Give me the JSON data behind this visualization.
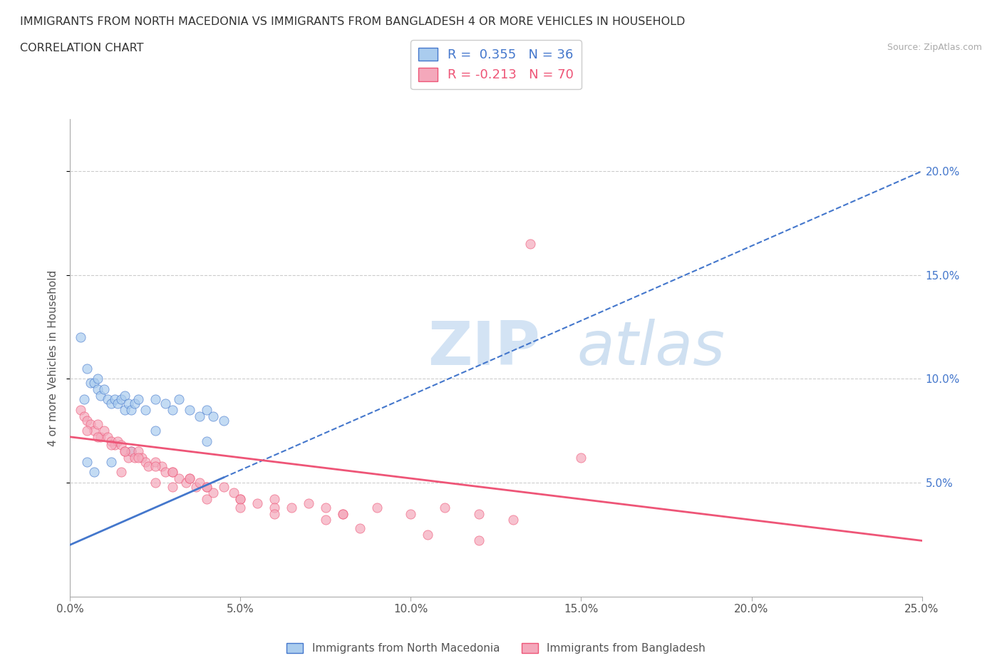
{
  "title_line1": "IMMIGRANTS FROM NORTH MACEDONIA VS IMMIGRANTS FROM BANGLADESH 4 OR MORE VEHICLES IN HOUSEHOLD",
  "title_line2": "CORRELATION CHART",
  "source_text": "Source: ZipAtlas.com",
  "ylabel": "4 or more Vehicles in Household",
  "legend_label1": "Immigrants from North Macedonia",
  "legend_label2": "Immigrants from Bangladesh",
  "R1": 0.355,
  "N1": 36,
  "R2": -0.213,
  "N2": 70,
  "xlim": [
    0.0,
    0.25
  ],
  "ylim": [
    -0.005,
    0.225
  ],
  "xticks": [
    0.0,
    0.05,
    0.1,
    0.15,
    0.2,
    0.25
  ],
  "yticks": [
    0.05,
    0.1,
    0.15,
    0.2
  ],
  "xtick_labels": [
    "0.0%",
    "5.0%",
    "10.0%",
    "15.0%",
    "20.0%",
    "25.0%"
  ],
  "ytick_labels": [
    "5.0%",
    "10.0%",
    "15.0%",
    "20.0%"
  ],
  "color1": "#aaccee",
  "color2": "#f4a8bb",
  "trendline1_color": "#4477cc",
  "trendline2_color": "#ee5577",
  "watermark_zip": "ZIP",
  "watermark_atlas": "atlas",
  "trendline1_intercept": 0.02,
  "trendline1_slope": 0.72,
  "trendline2_intercept": 0.072,
  "trendline2_slope": -0.2,
  "scatter1_x": [
    0.003,
    0.004,
    0.005,
    0.006,
    0.007,
    0.008,
    0.008,
    0.009,
    0.01,
    0.011,
    0.012,
    0.013,
    0.014,
    0.015,
    0.016,
    0.016,
    0.017,
    0.018,
    0.019,
    0.02,
    0.022,
    0.025,
    0.028,
    0.03,
    0.032,
    0.035,
    0.038,
    0.04,
    0.042,
    0.045,
    0.005,
    0.007,
    0.012,
    0.018,
    0.025,
    0.04
  ],
  "scatter1_y": [
    0.12,
    0.09,
    0.105,
    0.098,
    0.098,
    0.1,
    0.095,
    0.092,
    0.095,
    0.09,
    0.088,
    0.09,
    0.088,
    0.09,
    0.085,
    0.092,
    0.088,
    0.085,
    0.088,
    0.09,
    0.085,
    0.09,
    0.088,
    0.085,
    0.09,
    0.085,
    0.082,
    0.085,
    0.082,
    0.08,
    0.06,
    0.055,
    0.06,
    0.065,
    0.075,
    0.07
  ],
  "scatter2_x": [
    0.003,
    0.004,
    0.005,
    0.006,
    0.007,
    0.008,
    0.009,
    0.01,
    0.011,
    0.012,
    0.013,
    0.014,
    0.015,
    0.016,
    0.017,
    0.018,
    0.019,
    0.02,
    0.021,
    0.022,
    0.023,
    0.025,
    0.027,
    0.028,
    0.03,
    0.032,
    0.034,
    0.035,
    0.037,
    0.038,
    0.04,
    0.042,
    0.045,
    0.048,
    0.05,
    0.055,
    0.06,
    0.065,
    0.07,
    0.075,
    0.08,
    0.09,
    0.1,
    0.11,
    0.12,
    0.13,
    0.005,
    0.008,
    0.012,
    0.016,
    0.02,
    0.025,
    0.03,
    0.035,
    0.04,
    0.05,
    0.06,
    0.08,
    0.015,
    0.025,
    0.03,
    0.04,
    0.05,
    0.06,
    0.075,
    0.085,
    0.105,
    0.12,
    0.135,
    0.15
  ],
  "scatter2_y": [
    0.085,
    0.082,
    0.08,
    0.078,
    0.075,
    0.078,
    0.072,
    0.075,
    0.072,
    0.07,
    0.068,
    0.07,
    0.068,
    0.065,
    0.062,
    0.065,
    0.062,
    0.065,
    0.062,
    0.06,
    0.058,
    0.06,
    0.058,
    0.055,
    0.055,
    0.052,
    0.05,
    0.052,
    0.048,
    0.05,
    0.048,
    0.045,
    0.048,
    0.045,
    0.042,
    0.04,
    0.042,
    0.038,
    0.04,
    0.038,
    0.035,
    0.038,
    0.035,
    0.038,
    0.035,
    0.032,
    0.075,
    0.072,
    0.068,
    0.065,
    0.062,
    0.058,
    0.055,
    0.052,
    0.048,
    0.042,
    0.038,
    0.035,
    0.055,
    0.05,
    0.048,
    0.042,
    0.038,
    0.035,
    0.032,
    0.028,
    0.025,
    0.022,
    0.165,
    0.062
  ]
}
